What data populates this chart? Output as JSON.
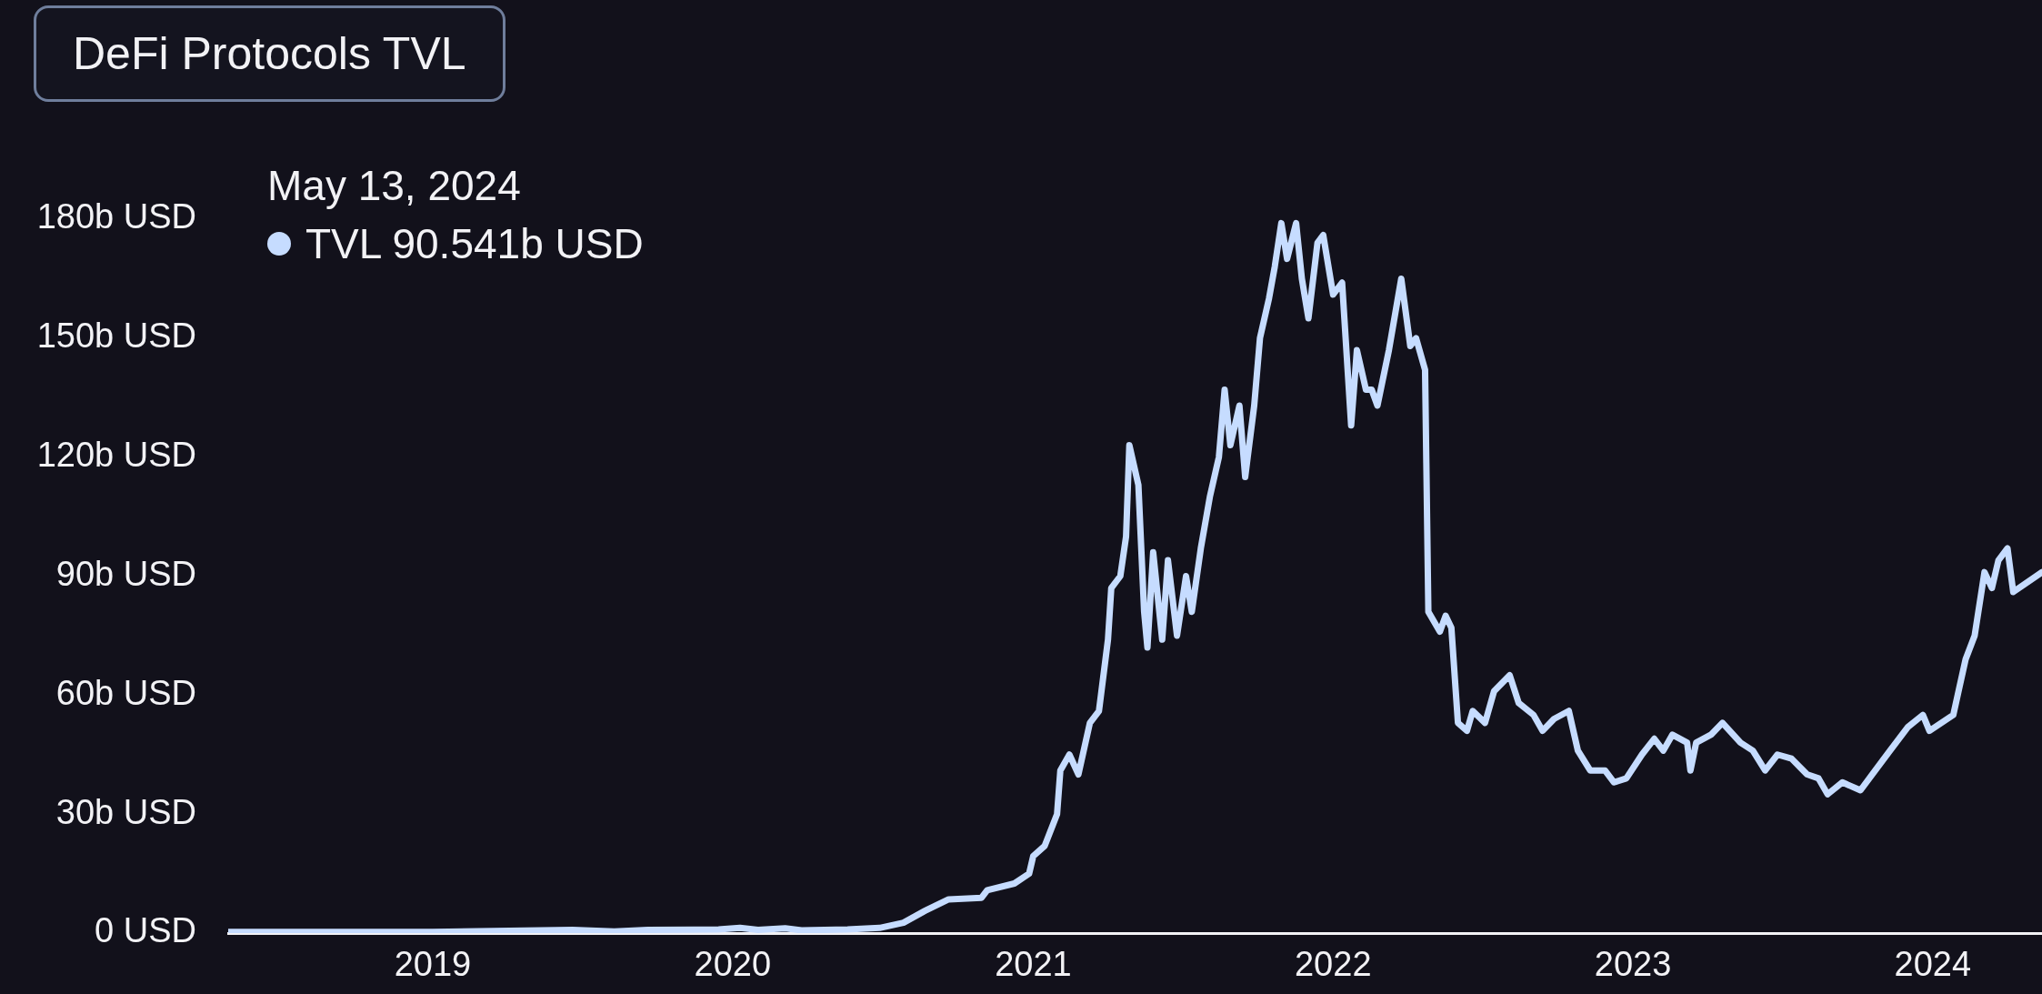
{
  "chart_data": {
    "type": "line",
    "title": "DeFi Protocols TVL",
    "annotations": [
      "May 13, 2024",
      "TVL 90.541b USD"
    ],
    "xlim": [
      "2018-04-27",
      "2024-05-13"
    ],
    "xticks": [
      "2019",
      "2020",
      "2021",
      "2022",
      "2023",
      "2024"
    ],
    "ylim": [
      0,
      180
    ],
    "yticks": [
      {
        "value": 0,
        "label": "0 USD"
      },
      {
        "value": 30,
        "label": "30b USD"
      },
      {
        "value": 60,
        "label": "60b USD"
      },
      {
        "value": 90,
        "label": "90b USD"
      },
      {
        "value": 120,
        "label": "120b USD"
      },
      {
        "value": 150,
        "label": "150b USD"
      },
      {
        "value": 180,
        "label": "180b USD"
      }
    ],
    "grid": false,
    "legend": false,
    "series": [
      {
        "color": "#c6dcff",
        "x": [
          "2018-04-27",
          "2019-01-01",
          "2019-06-20",
          "2019-08-10",
          "2019-09-20",
          "2019-12-15",
          "2020-01-10",
          "2020-02-01",
          "2020-03-05",
          "2020-03-25",
          "2020-05-20",
          "2020-06-28",
          "2020-07-27",
          "2020-08-22",
          "2020-09-20",
          "2020-10-30",
          "2020-11-06",
          "2020-12-09",
          "2020-12-27",
          "2021-01-01",
          "2021-01-15",
          "2021-01-30",
          "2021-02-03",
          "2021-02-14",
          "2021-02-25",
          "2021-03-11",
          "2021-03-22",
          "2021-04-02",
          "2021-04-06",
          "2021-04-17",
          "2021-04-24",
          "2021-04-28",
          "2021-05-09",
          "2021-05-16",
          "2021-05-20",
          "2021-05-27",
          "2021-06-07",
          "2021-06-14",
          "2021-06-25",
          "2021-07-06",
          "2021-07-13",
          "2021-07-24",
          "2021-08-04",
          "2021-08-15",
          "2021-08-22",
          "2021-08-29",
          "2021-09-09",
          "2021-09-16",
          "2021-09-27",
          "2021-10-04",
          "2021-10-15",
          "2021-10-22",
          "2021-10-30",
          "2021-11-06",
          "2021-11-17",
          "2021-11-24",
          "2021-12-02",
          "2021-12-13",
          "2021-12-20",
          "2022-01-01",
          "2022-01-12",
          "2022-01-23",
          "2022-01-30",
          "2022-02-10",
          "2022-02-17",
          "2022-02-24",
          "2022-03-10",
          "2022-03-25",
          "2022-04-05",
          "2022-04-12",
          "2022-04-23",
          "2022-04-27",
          "2022-05-11",
          "2022-05-18",
          "2022-05-25",
          "2022-06-02",
          "2022-06-13",
          "2022-06-20",
          "2022-07-05",
          "2022-07-16",
          "2022-08-04",
          "2022-08-15",
          "2022-09-02",
          "2022-09-13",
          "2022-09-27",
          "2022-10-15",
          "2022-10-26",
          "2022-11-10",
          "2022-11-28",
          "2022-12-09",
          "2022-12-24",
          "2023-01-12",
          "2023-01-27",
          "2023-02-07",
          "2023-02-18",
          "2023-03-08",
          "2023-03-12",
          "2023-03-19",
          "2023-04-06",
          "2023-04-20",
          "2023-05-12",
          "2023-05-27",
          "2023-06-11",
          "2023-06-26",
          "2023-07-13",
          "2023-08-01",
          "2023-08-15",
          "2023-08-26",
          "2023-09-13",
          "2023-10-05",
          "2023-10-23",
          "2023-11-10",
          "2023-12-02",
          "2023-12-20",
          "2023-12-28",
          "2024-01-26",
          "2024-02-10",
          "2024-02-21",
          "2024-03-04",
          "2024-03-13",
          "2024-03-21",
          "2024-04-01",
          "2024-04-08",
          "2024-05-13"
        ],
        "values": [
          0.3,
          0.3,
          0.8,
          0.4,
          0.8,
          0.9,
          1.3,
          0.8,
          1.2,
          0.7,
          0.9,
          1.3,
          2.6,
          5.6,
          8.5,
          8.9,
          10.8,
          12.5,
          15,
          19.4,
          22,
          30,
          41,
          45,
          40,
          53,
          56,
          74,
          87,
          90,
          100,
          123,
          113,
          81,
          72,
          96,
          74,
          94,
          75,
          90,
          81,
          97,
          110,
          120,
          137,
          123,
          133,
          115,
          133,
          150,
          160,
          168,
          179,
          170,
          179,
          165,
          155,
          174,
          176,
          161,
          164,
          128,
          147,
          137,
          137,
          133,
          147,
          165,
          148,
          150,
          142,
          81,
          76,
          80,
          77,
          53,
          51,
          56,
          53,
          61,
          65,
          58,
          55,
          51,
          54,
          56,
          46,
          41,
          41,
          38,
          39,
          45,
          49,
          46,
          50,
          48,
          41,
          48,
          50,
          53,
          48,
          46,
          41,
          45,
          44,
          40,
          39,
          35,
          38,
          36,
          41,
          46,
          52,
          55,
          51,
          55,
          69,
          75,
          91,
          87,
          94,
          97,
          86,
          91
        ]
      }
    ]
  }
}
